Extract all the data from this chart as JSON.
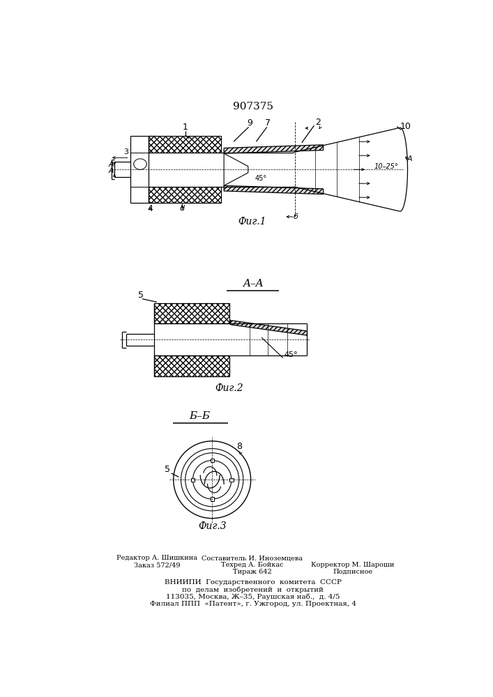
{
  "patent_number": "907375",
  "background_color": "#ffffff",
  "line_color": "#000000",
  "fig1_caption": "Фиг.1",
  "fig2_caption": "Фиг.2",
  "fig3_caption": "Фиг.3",
  "section_aa": "A–A",
  "section_bb": "Б–Б",
  "footer_left_line1": "Редактор А. Шишкина",
  "footer_left_line2": "Заказ 572/49",
  "footer_center_line1": "Составитель И. Иноземцева",
  "footer_center_line2": "Техред А. Бойкас",
  "footer_center_line3": "Тираж 642",
  "footer_right_line1": "Корректор М. Шароши",
  "footer_right_line2": "Подписное",
  "footer_vniip1": "ВНИИПИ  Государственного  комитета  СССР",
  "footer_vniip2": "по  делам  изобретений  и  открытий",
  "footer_vniip3": "113035, Москва, Ж–35, Раушская наб.,  д. 4/5",
  "footer_vniip4": "Филиал ППП  «Патент», г. Ужгород, ул. Проектная, 4"
}
